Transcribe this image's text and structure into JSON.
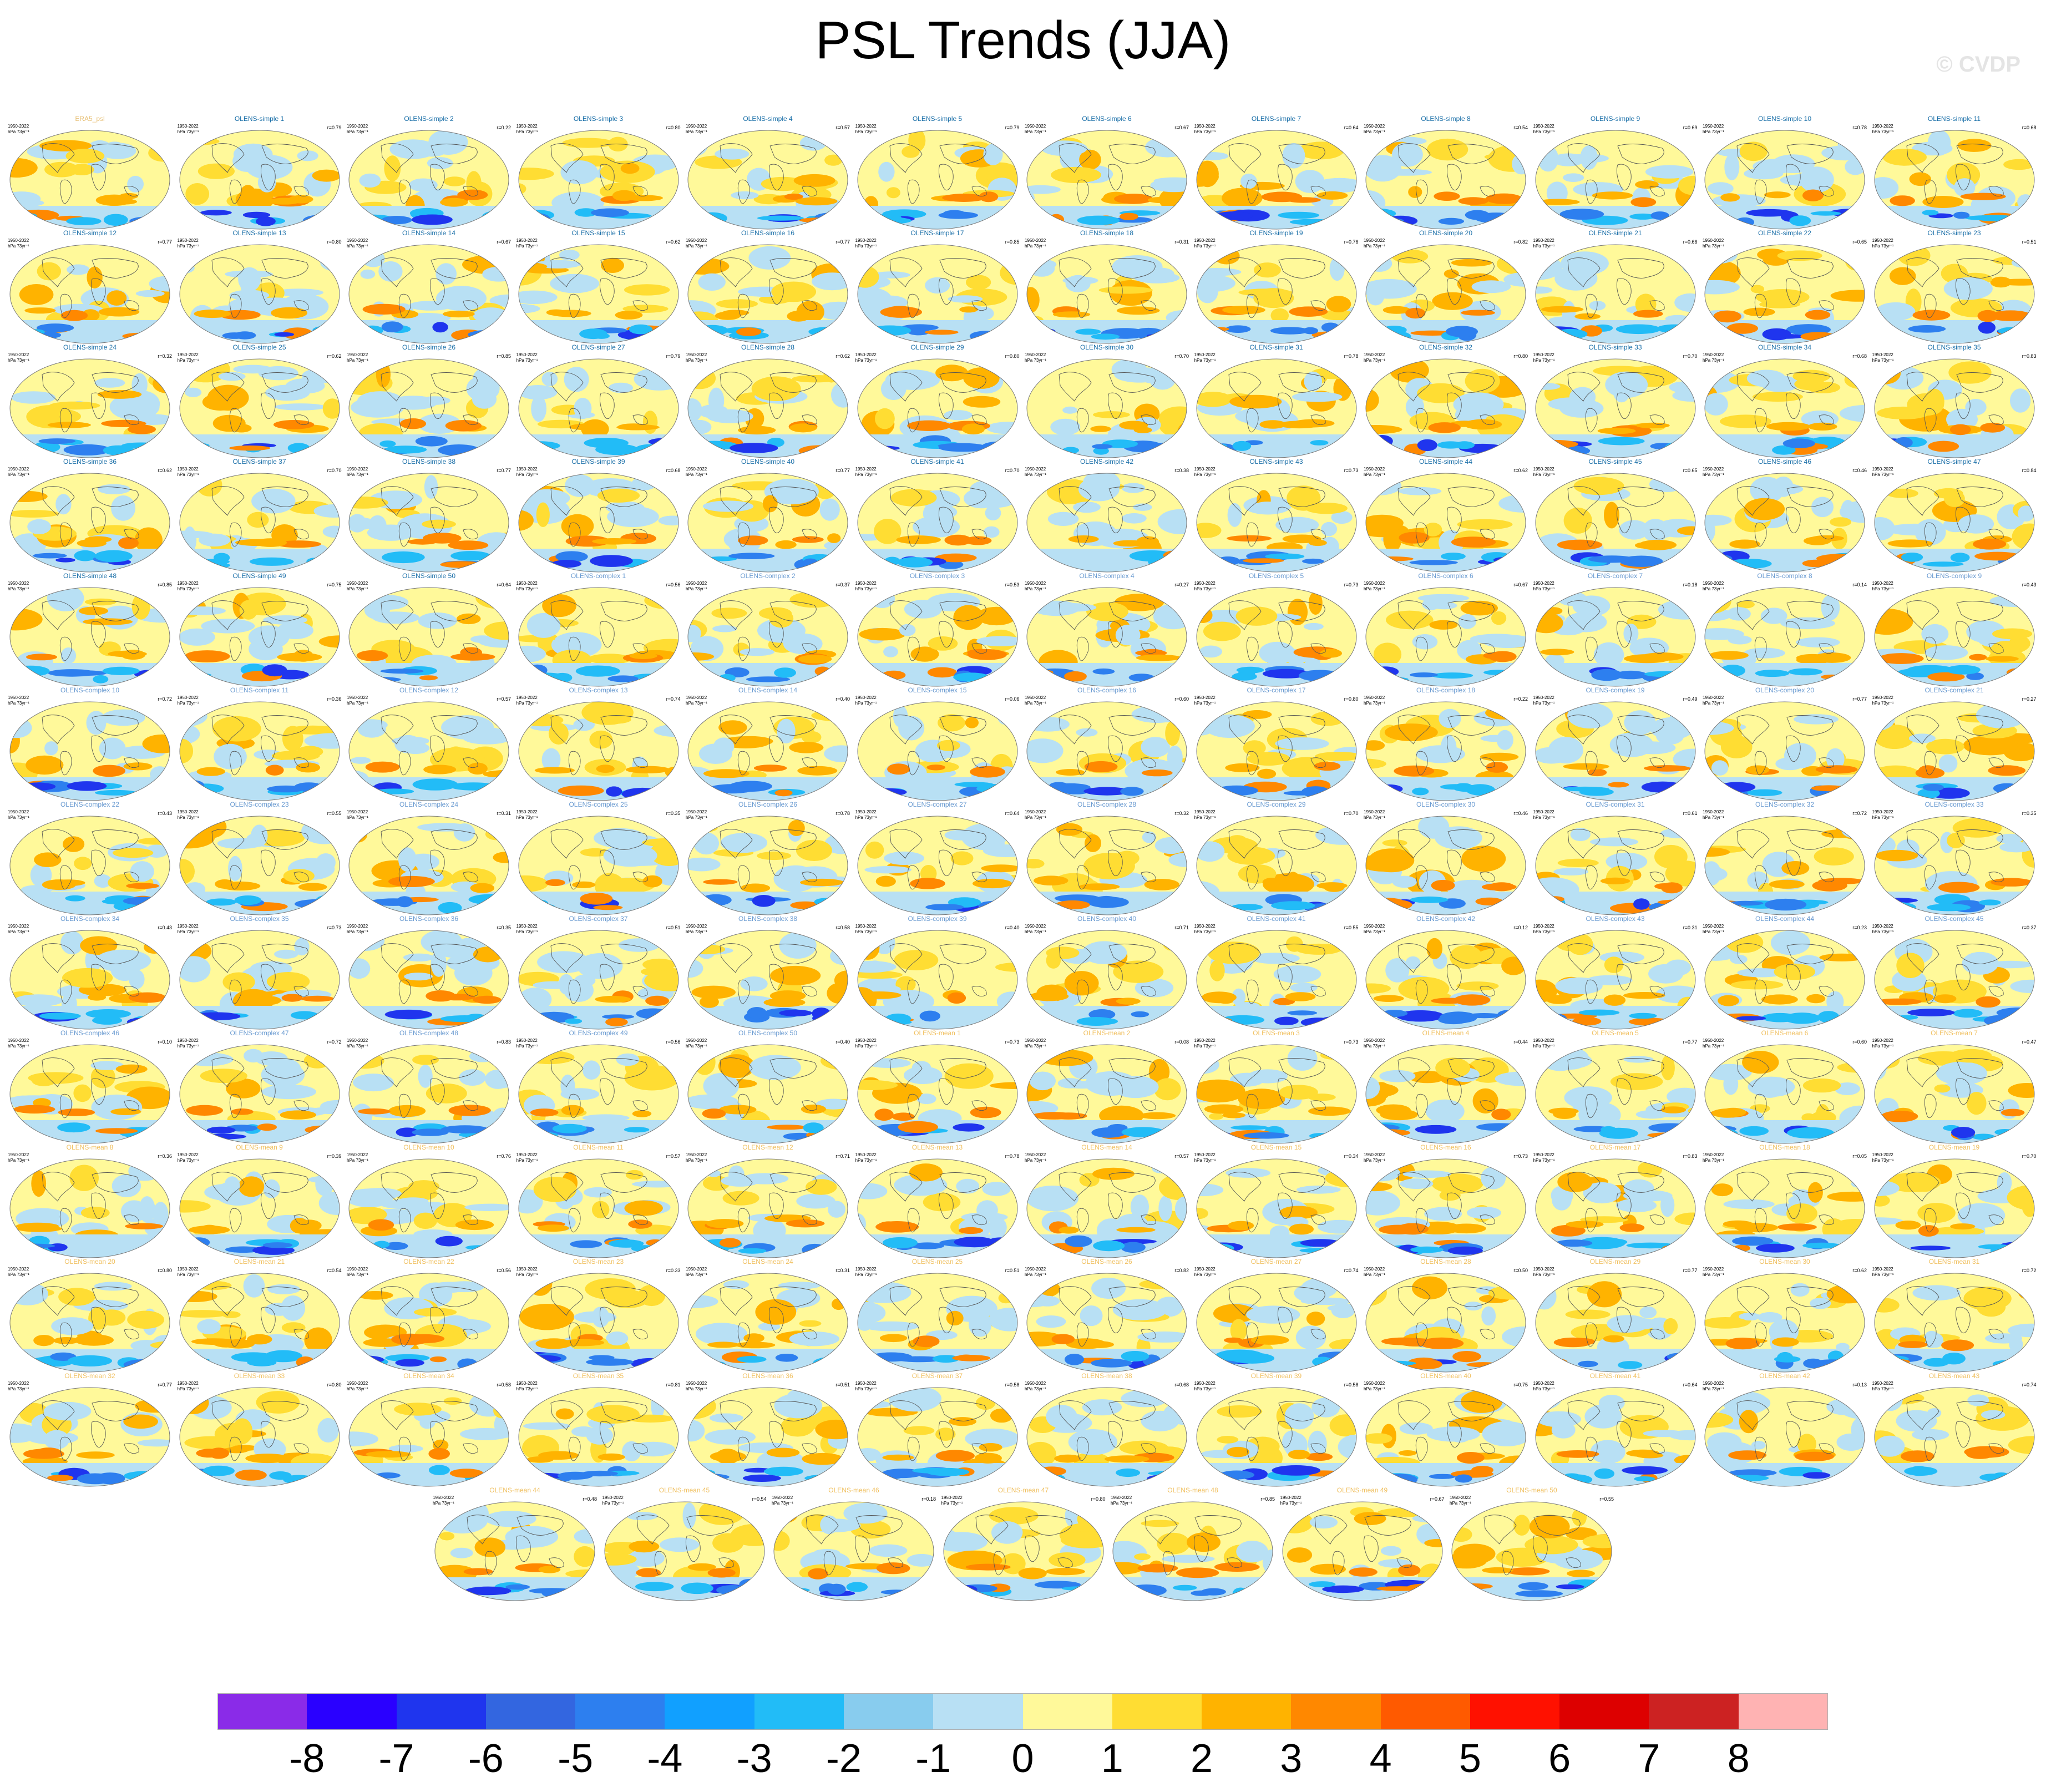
{
  "title": "PSL Trends (JJA)",
  "watermark": "© CVDP",
  "panel_common": {
    "period": "1950-2022",
    "units": "hPa 73yr⁻¹"
  },
  "colors": {
    "title_obs": "#e8c27a",
    "title_simple": "#1a6fa8",
    "title_complex": "#6a9bd1",
    "title_mean": "#f0c060"
  },
  "panels": [
    {
      "title": "ERA5_psl",
      "r": "",
      "group": "obs"
    },
    {
      "title": "OLENS-simple 1",
      "r": "r=0.79",
      "group": "simple"
    },
    {
      "title": "OLENS-simple 2",
      "r": "r=0.22",
      "group": "simple"
    },
    {
      "title": "OLENS-simple 3",
      "r": "r=0.80",
      "group": "simple"
    },
    {
      "title": "OLENS-simple 4",
      "r": "r=0.57",
      "group": "simple"
    },
    {
      "title": "OLENS-simple 5",
      "r": "r=0.79",
      "group": "simple"
    },
    {
      "title": "OLENS-simple 6",
      "r": "r=0.67",
      "group": "simple"
    },
    {
      "title": "OLENS-simple 7",
      "r": "r=0.64",
      "group": "simple"
    },
    {
      "title": "OLENS-simple 8",
      "r": "r=0.54",
      "group": "simple"
    },
    {
      "title": "OLENS-simple 9",
      "r": "r=0.69",
      "group": "simple"
    },
    {
      "title": "OLENS-simple 10",
      "r": "r=0.78",
      "group": "simple"
    },
    {
      "title": "OLENS-simple 11",
      "r": "r=0.68",
      "group": "simple"
    },
    {
      "title": "OLENS-simple 12",
      "r": "r=0.77",
      "group": "simple"
    },
    {
      "title": "OLENS-simple 13",
      "r": "r=0.80",
      "group": "simple"
    },
    {
      "title": "OLENS-simple 14",
      "r": "r=0.67",
      "group": "simple"
    },
    {
      "title": "OLENS-simple 15",
      "r": "r=0.62",
      "group": "simple"
    },
    {
      "title": "OLENS-simple 16",
      "r": "r=0.77",
      "group": "simple"
    },
    {
      "title": "OLENS-simple 17",
      "r": "r=0.85",
      "group": "simple"
    },
    {
      "title": "OLENS-simple 18",
      "r": "r=0.31",
      "group": "simple"
    },
    {
      "title": "OLENS-simple 19",
      "r": "r=0.76",
      "group": "simple"
    },
    {
      "title": "OLENS-simple 20",
      "r": "r=0.82",
      "group": "simple"
    },
    {
      "title": "OLENS-simple 21",
      "r": "r=0.66",
      "group": "simple"
    },
    {
      "title": "OLENS-simple 22",
      "r": "r=0.65",
      "group": "simple"
    },
    {
      "title": "OLENS-simple 23",
      "r": "r=0.51",
      "group": "simple"
    },
    {
      "title": "OLENS-simple 24",
      "r": "r=0.32",
      "group": "simple"
    },
    {
      "title": "OLENS-simple 25",
      "r": "r=0.62",
      "group": "simple"
    },
    {
      "title": "OLENS-simple 26",
      "r": "r=0.85",
      "group": "simple"
    },
    {
      "title": "OLENS-simple 27",
      "r": "r=0.79",
      "group": "simple"
    },
    {
      "title": "OLENS-simple 28",
      "r": "r=0.62",
      "group": "simple"
    },
    {
      "title": "OLENS-simple 29",
      "r": "r=0.80",
      "group": "simple"
    },
    {
      "title": "OLENS-simple 30",
      "r": "r=0.70",
      "group": "simple"
    },
    {
      "title": "OLENS-simple 31",
      "r": "r=0.78",
      "group": "simple"
    },
    {
      "title": "OLENS-simple 32",
      "r": "r=0.80",
      "group": "simple"
    },
    {
      "title": "OLENS-simple 33",
      "r": "r=0.70",
      "group": "simple"
    },
    {
      "title": "OLENS-simple 34",
      "r": "r=0.68",
      "group": "simple"
    },
    {
      "title": "OLENS-simple 35",
      "r": "r=0.83",
      "group": "simple"
    },
    {
      "title": "OLENS-simple 36",
      "r": "r=0.62",
      "group": "simple"
    },
    {
      "title": "OLENS-simple 37",
      "r": "r=0.70",
      "group": "simple"
    },
    {
      "title": "OLENS-simple 38",
      "r": "r=0.77",
      "group": "simple"
    },
    {
      "title": "OLENS-simple 39",
      "r": "r=0.68",
      "group": "simple"
    },
    {
      "title": "OLENS-simple 40",
      "r": "r=0.77",
      "group": "simple"
    },
    {
      "title": "OLENS-simple 41",
      "r": "r=0.70",
      "group": "simple"
    },
    {
      "title": "OLENS-simple 42",
      "r": "r=0.38",
      "group": "simple"
    },
    {
      "title": "OLENS-simple 43",
      "r": "r=0.73",
      "group": "simple"
    },
    {
      "title": "OLENS-simple 44",
      "r": "r=0.62",
      "group": "simple"
    },
    {
      "title": "OLENS-simple 45",
      "r": "r=0.65",
      "group": "simple"
    },
    {
      "title": "OLENS-simple 46",
      "r": "r=0.46",
      "group": "simple"
    },
    {
      "title": "OLENS-simple 47",
      "r": "r=0.84",
      "group": "simple"
    },
    {
      "title": "OLENS-simple 48",
      "r": "r=0.85",
      "group": "simple"
    },
    {
      "title": "OLENS-simple 49",
      "r": "r=0.75",
      "group": "simple"
    },
    {
      "title": "OLENS-simple 50",
      "r": "r=0.64",
      "group": "simple"
    },
    {
      "title": "OLENS-complex 1",
      "r": "r=0.56",
      "group": "complex"
    },
    {
      "title": "OLENS-complex 2",
      "r": "r=0.37",
      "group": "complex"
    },
    {
      "title": "OLENS-complex 3",
      "r": "r=0.53",
      "group": "complex"
    },
    {
      "title": "OLENS-complex 4",
      "r": "r=0.27",
      "group": "complex"
    },
    {
      "title": "OLENS-complex 5",
      "r": "r=0.73",
      "group": "complex"
    },
    {
      "title": "OLENS-complex 6",
      "r": "r=0.67",
      "group": "complex"
    },
    {
      "title": "OLENS-complex 7",
      "r": "r=0.18",
      "group": "complex"
    },
    {
      "title": "OLENS-complex 8",
      "r": "r=0.14",
      "group": "complex"
    },
    {
      "title": "OLENS-complex 9",
      "r": "r=0.43",
      "group": "complex"
    },
    {
      "title": "OLENS-complex 10",
      "r": "r=0.72",
      "group": "complex"
    },
    {
      "title": "OLENS-complex 11",
      "r": "r=0.36",
      "group": "complex"
    },
    {
      "title": "OLENS-complex 12",
      "r": "r=0.57",
      "group": "complex"
    },
    {
      "title": "OLENS-complex 13",
      "r": "r=0.74",
      "group": "complex"
    },
    {
      "title": "OLENS-complex 14",
      "r": "r=0.40",
      "group": "complex"
    },
    {
      "title": "OLENS-complex 15",
      "r": "r=0.06",
      "group": "complex"
    },
    {
      "title": "OLENS-complex 16",
      "r": "r=0.60",
      "group": "complex"
    },
    {
      "title": "OLENS-complex 17",
      "r": "r=0.80",
      "group": "complex"
    },
    {
      "title": "OLENS-complex 18",
      "r": "r=0.22",
      "group": "complex"
    },
    {
      "title": "OLENS-complex 19",
      "r": "r=0.49",
      "group": "complex"
    },
    {
      "title": "OLENS-complex 20",
      "r": "r=0.77",
      "group": "complex"
    },
    {
      "title": "OLENS-complex 21",
      "r": "r=0.27",
      "group": "complex"
    },
    {
      "title": "OLENS-complex 22",
      "r": "r=0.43",
      "group": "complex"
    },
    {
      "title": "OLENS-complex 23",
      "r": "r=0.55",
      "group": "complex"
    },
    {
      "title": "OLENS-complex 24",
      "r": "r=0.31",
      "group": "complex"
    },
    {
      "title": "OLENS-complex 25",
      "r": "r=0.35",
      "group": "complex"
    },
    {
      "title": "OLENS-complex 26",
      "r": "r=0.78",
      "group": "complex"
    },
    {
      "title": "OLENS-complex 27",
      "r": "r=0.64",
      "group": "complex"
    },
    {
      "title": "OLENS-complex 28",
      "r": "r=0.32",
      "group": "complex"
    },
    {
      "title": "OLENS-complex 29",
      "r": "r=0.70",
      "group": "complex"
    },
    {
      "title": "OLENS-complex 30",
      "r": "r=0.46",
      "group": "complex"
    },
    {
      "title": "OLENS-complex 31",
      "r": "r=0.61",
      "group": "complex"
    },
    {
      "title": "OLENS-complex 32",
      "r": "r=0.72",
      "group": "complex"
    },
    {
      "title": "OLENS-complex 33",
      "r": "r=0.35",
      "group": "complex"
    },
    {
      "title": "OLENS-complex 34",
      "r": "r=0.43",
      "group": "complex"
    },
    {
      "title": "OLENS-complex 35",
      "r": "r=0.73",
      "group": "complex"
    },
    {
      "title": "OLENS-complex 36",
      "r": "r=0.35",
      "group": "complex"
    },
    {
      "title": "OLENS-complex 37",
      "r": "r=0.51",
      "group": "complex"
    },
    {
      "title": "OLENS-complex 38",
      "r": "r=0.58",
      "group": "complex"
    },
    {
      "title": "OLENS-complex 39",
      "r": "r=0.40",
      "group": "complex"
    },
    {
      "title": "OLENS-complex 40",
      "r": "r=0.71",
      "group": "complex"
    },
    {
      "title": "OLENS-complex 41",
      "r": "r=0.55",
      "group": "complex"
    },
    {
      "title": "OLENS-complex 42",
      "r": "r=0.12",
      "group": "complex"
    },
    {
      "title": "OLENS-complex 43",
      "r": "r=0.31",
      "group": "complex"
    },
    {
      "title": "OLENS-complex 44",
      "r": "r=0.23",
      "group": "complex"
    },
    {
      "title": "OLENS-complex 45",
      "r": "r=0.37",
      "group": "complex"
    },
    {
      "title": "OLENS-complex 46",
      "r": "r=0.10",
      "group": "complex"
    },
    {
      "title": "OLENS-complex 47",
      "r": "r=0.72",
      "group": "complex"
    },
    {
      "title": "OLENS-complex 48",
      "r": "r=0.83",
      "group": "complex"
    },
    {
      "title": "OLENS-complex 49",
      "r": "r=0.56",
      "group": "complex"
    },
    {
      "title": "OLENS-complex 50",
      "r": "r=0.40",
      "group": "complex"
    },
    {
      "title": "OLENS-mean 1",
      "r": "r=0.73",
      "group": "mean"
    },
    {
      "title": "OLENS-mean 2",
      "r": "r=0.08",
      "group": "mean"
    },
    {
      "title": "OLENS-mean 3",
      "r": "r=0.73",
      "group": "mean"
    },
    {
      "title": "OLENS-mean 4",
      "r": "r=0.44",
      "group": "mean"
    },
    {
      "title": "OLENS-mean 5",
      "r": "r=0.77",
      "group": "mean"
    },
    {
      "title": "OLENS-mean 6",
      "r": "r=0.60",
      "group": "mean"
    },
    {
      "title": "OLENS-mean 7",
      "r": "r=0.47",
      "group": "mean"
    },
    {
      "title": "OLENS-mean 8",
      "r": "r=0.36",
      "group": "mean"
    },
    {
      "title": "OLENS-mean 9",
      "r": "r=0.39",
      "group": "mean"
    },
    {
      "title": "OLENS-mean 10",
      "r": "r=0.76",
      "group": "mean"
    },
    {
      "title": "OLENS-mean 11",
      "r": "r=0.57",
      "group": "mean"
    },
    {
      "title": "OLENS-mean 12",
      "r": "r=0.71",
      "group": "mean"
    },
    {
      "title": "OLENS-mean 13",
      "r": "r=0.78",
      "group": "mean"
    },
    {
      "title": "OLENS-mean 14",
      "r": "r=0.57",
      "group": "mean"
    },
    {
      "title": "OLENS-mean 15",
      "r": "r=0.34",
      "group": "mean"
    },
    {
      "title": "OLENS-mean 16",
      "r": "r=0.73",
      "group": "mean"
    },
    {
      "title": "OLENS-mean 17",
      "r": "r=0.83",
      "group": "mean"
    },
    {
      "title": "OLENS-mean 18",
      "r": "r=0.05",
      "group": "mean"
    },
    {
      "title": "OLENS-mean 19",
      "r": "r=0.70",
      "group": "mean"
    },
    {
      "title": "OLENS-mean 20",
      "r": "r=0.80",
      "group": "mean"
    },
    {
      "title": "OLENS-mean 21",
      "r": "r=0.54",
      "group": "mean"
    },
    {
      "title": "OLENS-mean 22",
      "r": "r=0.56",
      "group": "mean"
    },
    {
      "title": "OLENS-mean 23",
      "r": "r=0.33",
      "group": "mean"
    },
    {
      "title": "OLENS-mean 24",
      "r": "r=0.31",
      "group": "mean"
    },
    {
      "title": "OLENS-mean 25",
      "r": "r=0.51",
      "group": "mean"
    },
    {
      "title": "OLENS-mean 26",
      "r": "r=0.82",
      "group": "mean"
    },
    {
      "title": "OLENS-mean 27",
      "r": "r=0.74",
      "group": "mean"
    },
    {
      "title": "OLENS-mean 28",
      "r": "r=0.50",
      "group": "mean"
    },
    {
      "title": "OLENS-mean 29",
      "r": "r=0.77",
      "group": "mean"
    },
    {
      "title": "OLENS-mean 30",
      "r": "r=0.62",
      "group": "mean"
    },
    {
      "title": "OLENS-mean 31",
      "r": "r=0.72",
      "group": "mean"
    },
    {
      "title": "OLENS-mean 32",
      "r": "r=0.77",
      "group": "mean"
    },
    {
      "title": "OLENS-mean 33",
      "r": "r=0.80",
      "group": "mean"
    },
    {
      "title": "OLENS-mean 34",
      "r": "r=0.58",
      "group": "mean"
    },
    {
      "title": "OLENS-mean 35",
      "r": "r=0.81",
      "group": "mean"
    },
    {
      "title": "OLENS-mean 36",
      "r": "r=0.51",
      "group": "mean"
    },
    {
      "title": "OLENS-mean 37",
      "r": "r=0.58",
      "group": "mean"
    },
    {
      "title": "OLENS-mean 38",
      "r": "r=0.68",
      "group": "mean"
    },
    {
      "title": "OLENS-mean 39",
      "r": "r=0.58",
      "group": "mean"
    },
    {
      "title": "OLENS-mean 40",
      "r": "r=0.75",
      "group": "mean"
    },
    {
      "title": "OLENS-mean 41",
      "r": "r=0.64",
      "group": "mean"
    },
    {
      "title": "OLENS-mean 42",
      "r": "r=0.13",
      "group": "mean"
    },
    {
      "title": "OLENS-mean 43",
      "r": "r=0.74",
      "group": "mean"
    },
    {
      "title": "OLENS-mean 44",
      "r": "r=0.48",
      "group": "mean"
    },
    {
      "title": "OLENS-mean 45",
      "r": "r=0.54",
      "group": "mean"
    },
    {
      "title": "OLENS-mean 46",
      "r": "r=0.18",
      "group": "mean"
    },
    {
      "title": "OLENS-mean 47",
      "r": "r=0.80",
      "group": "mean"
    },
    {
      "title": "OLENS-mean 48",
      "r": "r=0.85",
      "group": "mean"
    },
    {
      "title": "OLENS-mean 49",
      "r": "r=0.67",
      "group": "mean"
    },
    {
      "title": "OLENS-mean 50",
      "r": "r=0.55",
      "group": "mean"
    }
  ],
  "colorbar": {
    "ticks": [
      "-8",
      "-7",
      "-6",
      "-5",
      "-4",
      "-3",
      "-2",
      "-1",
      "0",
      "1",
      "2",
      "3",
      "4",
      "5",
      "6",
      "7",
      "8"
    ],
    "colors": [
      "#8a2be8",
      "#2a00ff",
      "#1f35ee",
      "#3366e0",
      "#2d7fef",
      "#11a0ff",
      "#22bcf7",
      "#88ccee",
      "#b8e0f4",
      "#fff99a",
      "#ffdd33",
      "#ffb300",
      "#ff8800",
      "#ff5a00",
      "#ff1100",
      "#dd0000",
      "#cc2222",
      "#ffb3b3"
    ]
  }
}
